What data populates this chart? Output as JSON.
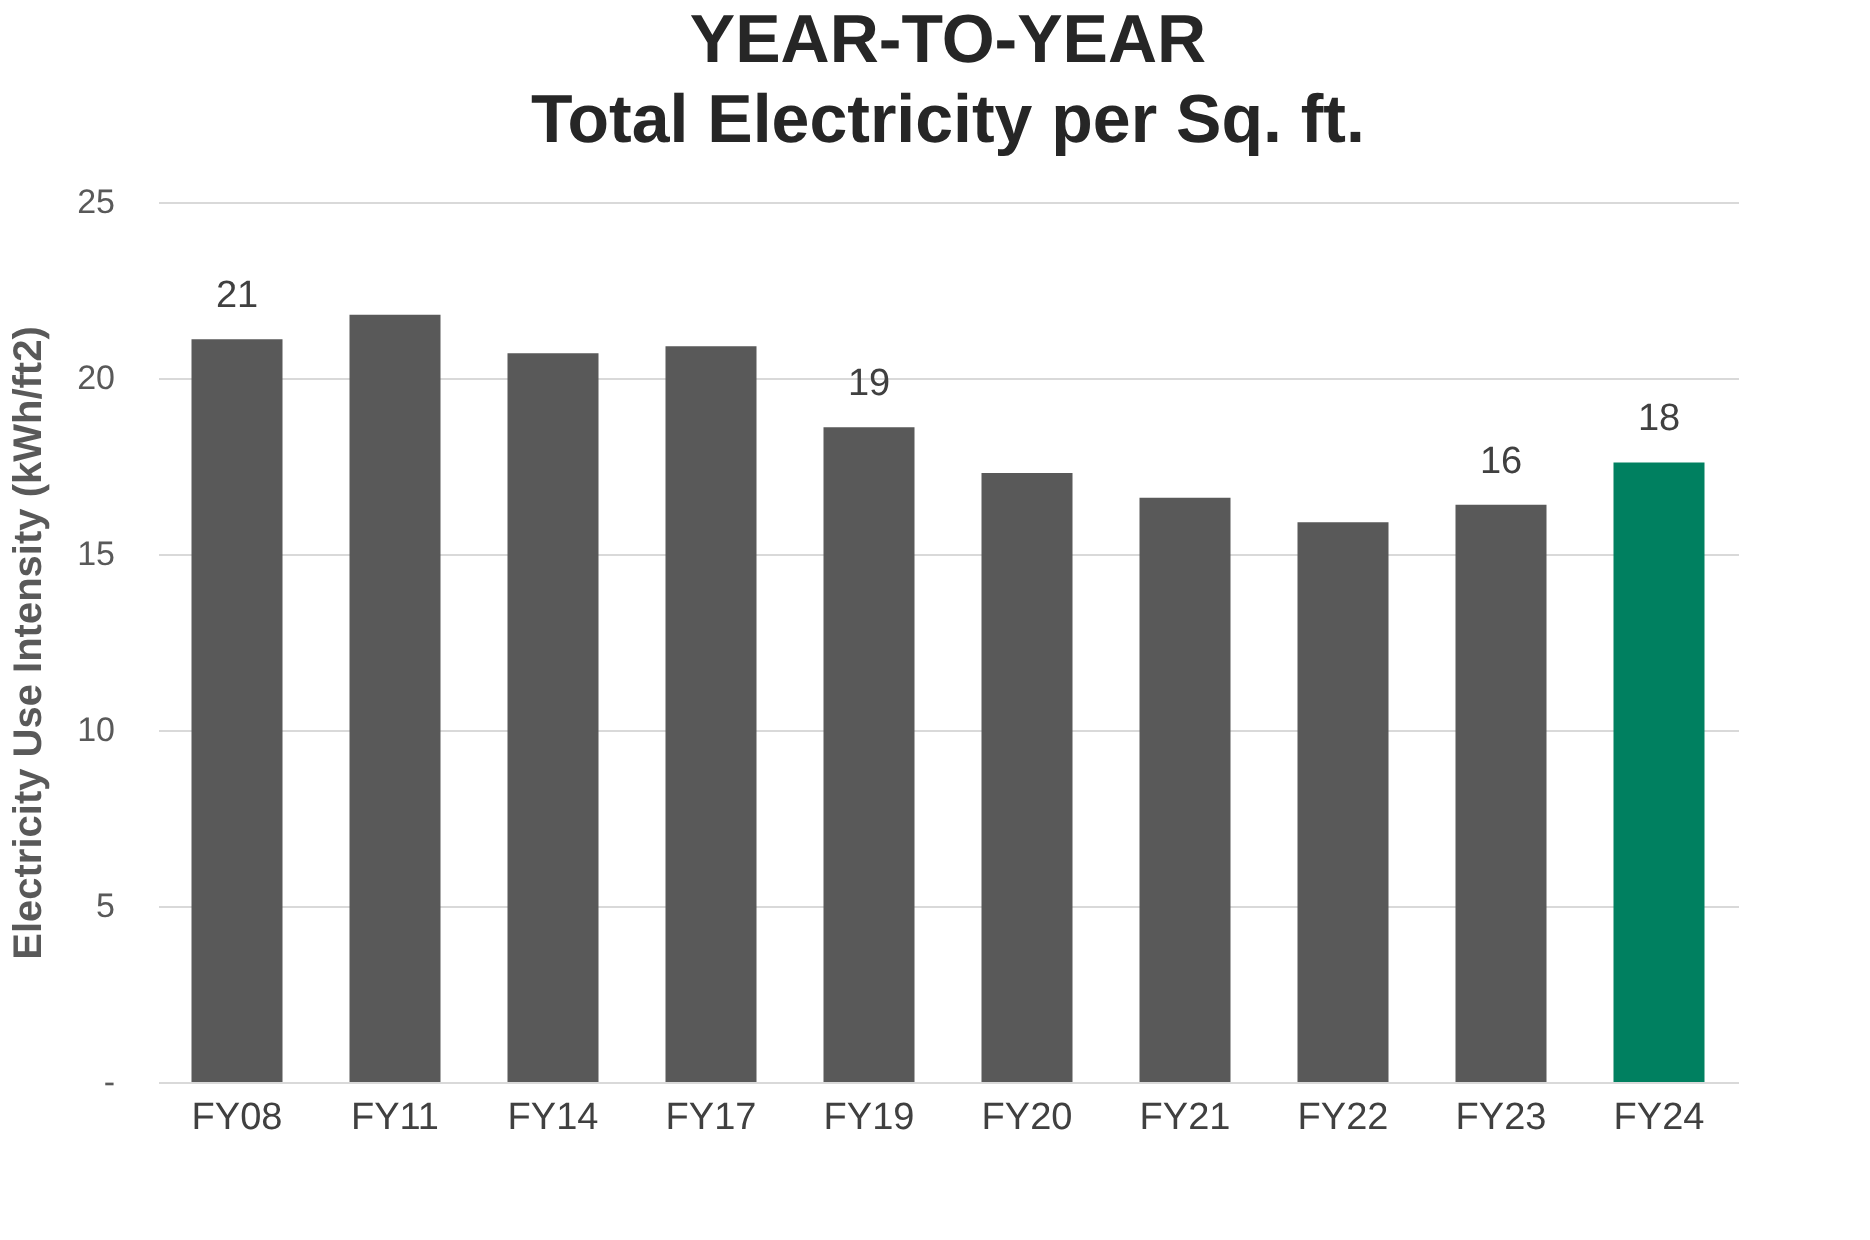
{
  "chart_data": {
    "type": "bar",
    "title": "YEAR-TO-YEAR\nTotal Electricity per Sq. ft.",
    "ylabel": "Electricity Use Intensity (kWh/ft2)",
    "categories": [
      "FY08",
      "FY11",
      "FY14",
      "FY17",
      "FY19",
      "FY20",
      "FY21",
      "FY22",
      "FY23",
      "FY24"
    ],
    "values": [
      21.1,
      21.8,
      20.7,
      20.9,
      18.6,
      17.3,
      16.6,
      15.9,
      16.4,
      17.6
    ],
    "value_labels": [
      "21",
      null,
      null,
      null,
      "19",
      null,
      null,
      null,
      "16",
      "18"
    ],
    "colors": [
      "#595959",
      "#595959",
      "#595959",
      "#595959",
      "#595959",
      "#595959",
      "#595959",
      "#595959",
      "#595959",
      "#008060"
    ],
    "ylim": [
      0,
      25
    ],
    "yticks": [
      {
        "value": 0,
        "label": "-"
      },
      5,
      10,
      15,
      20,
      25
    ],
    "grid": "y",
    "legend": false
  }
}
